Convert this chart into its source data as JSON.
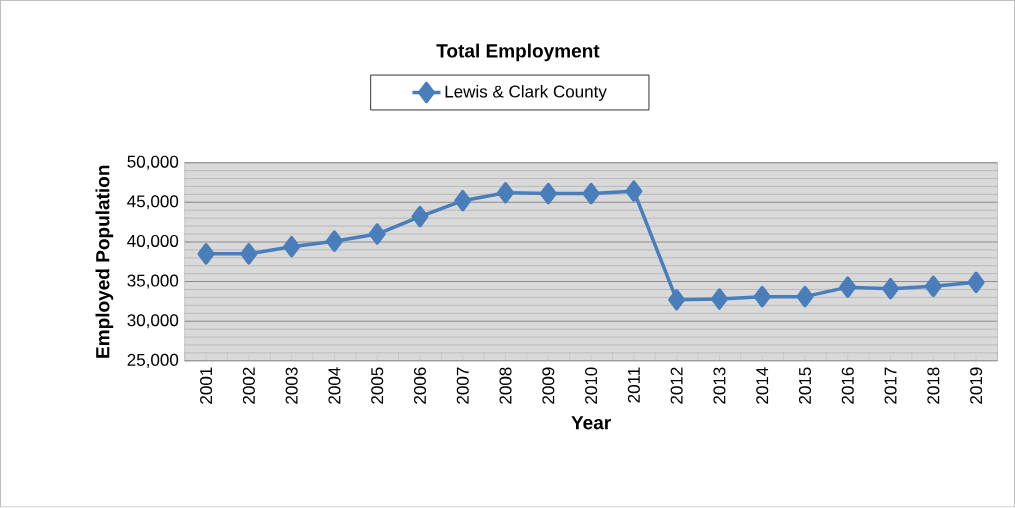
{
  "chart_data": {
    "type": "line",
    "title": "Total Employment",
    "xlabel": "Year",
    "ylabel": "Employed Population",
    "categories": [
      "2001",
      "2002",
      "2003",
      "2004",
      "2005",
      "2006",
      "2007",
      "2008",
      "2009",
      "2010",
      "2011",
      "2012",
      "2013",
      "2014",
      "2015",
      "2016",
      "2017",
      "2018",
      "2019"
    ],
    "series": [
      {
        "name": "Lewis & Clark County",
        "color": "#4a7ebb",
        "values": [
          38500,
          38500,
          39400,
          40100,
          41000,
          43200,
          45200,
          46200,
          46100,
          46100,
          46400,
          32700,
          32800,
          33100,
          33100,
          34300,
          34100,
          34400,
          34900
        ]
      }
    ],
    "ylim": [
      25000,
      50000
    ],
    "yticks": [
      {
        "value": 25000,
        "label": "25,000"
      },
      {
        "value": 30000,
        "label": "30,000"
      },
      {
        "value": 35000,
        "label": "35,000"
      },
      {
        "value": 40000,
        "label": "40,000"
      },
      {
        "value": 45000,
        "label": "45,000"
      },
      {
        "value": 50000,
        "label": "50,000"
      }
    ],
    "grid": "y",
    "legend": "top",
    "marker": "diamond",
    "line_style": "solid"
  }
}
